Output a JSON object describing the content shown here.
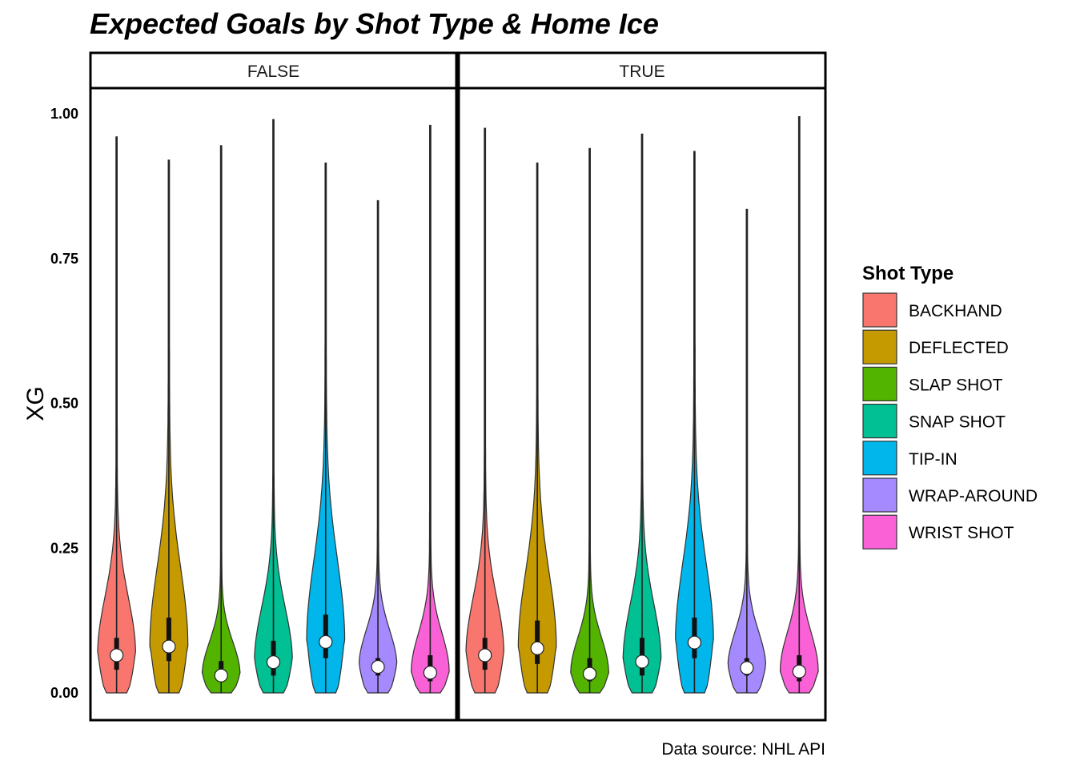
{
  "chart_data": {
    "type": "violin",
    "title": "Expected Goals by Shot Type & Home Ice",
    "ylabel": "XG",
    "xlabel": "",
    "caption": "Data source: NHL API",
    "ylim": [
      0,
      1.0
    ],
    "yticks": [
      "0.00",
      "0.25",
      "0.50",
      "0.75",
      "1.00"
    ],
    "ytick_values": [
      0,
      0.25,
      0.5,
      0.75,
      1.0
    ],
    "grid": false,
    "legend": {
      "title": "Shot Type",
      "position": "right",
      "items": [
        {
          "label": "BACKHAND",
          "color": "#F8766D"
        },
        {
          "label": "DEFLECTED",
          "color": "#C49A00"
        },
        {
          "label": "SLAP SHOT",
          "color": "#53B400"
        },
        {
          "label": "SNAP SHOT",
          "color": "#00C094"
        },
        {
          "label": "TIP-IN",
          "color": "#00B6EB"
        },
        {
          "label": "WRAP-AROUND",
          "color": "#A58AFF"
        },
        {
          "label": "WRIST SHOT",
          "color": "#FB61D7"
        }
      ]
    },
    "facets": [
      {
        "label": "FALSE",
        "series": [
          {
            "shot_type": "BACKHAND",
            "median": 0.065,
            "q1": 0.04,
            "q3": 0.095,
            "max": 0.96
          },
          {
            "shot_type": "DEFLECTED",
            "median": 0.08,
            "q1": 0.055,
            "q3": 0.13,
            "max": 0.92
          },
          {
            "shot_type": "SLAP SHOT",
            "median": 0.03,
            "q1": 0.02,
            "q3": 0.055,
            "max": 0.945
          },
          {
            "shot_type": "SNAP SHOT",
            "median": 0.053,
            "q1": 0.03,
            "q3": 0.09,
            "max": 0.99
          },
          {
            "shot_type": "TIP-IN",
            "median": 0.088,
            "q1": 0.06,
            "q3": 0.135,
            "max": 0.915
          },
          {
            "shot_type": "WRAP-AROUND",
            "median": 0.045,
            "q1": 0.03,
            "q3": 0.06,
            "max": 0.85
          },
          {
            "shot_type": "WRIST SHOT",
            "median": 0.035,
            "q1": 0.02,
            "q3": 0.065,
            "max": 0.98
          }
        ]
      },
      {
        "label": "TRUE",
        "series": [
          {
            "shot_type": "BACKHAND",
            "median": 0.065,
            "q1": 0.04,
            "q3": 0.095,
            "max": 0.975
          },
          {
            "shot_type": "DEFLECTED",
            "median": 0.077,
            "q1": 0.05,
            "q3": 0.125,
            "max": 0.915
          },
          {
            "shot_type": "SLAP SHOT",
            "median": 0.033,
            "q1": 0.02,
            "q3": 0.06,
            "max": 0.94
          },
          {
            "shot_type": "SNAP SHOT",
            "median": 0.054,
            "q1": 0.03,
            "q3": 0.095,
            "max": 0.965
          },
          {
            "shot_type": "TIP-IN",
            "median": 0.087,
            "q1": 0.06,
            "q3": 0.13,
            "max": 0.935
          },
          {
            "shot_type": "WRAP-AROUND",
            "median": 0.043,
            "q1": 0.03,
            "q3": 0.06,
            "max": 0.835
          },
          {
            "shot_type": "WRIST SHOT",
            "median": 0.037,
            "q1": 0.02,
            "q3": 0.065,
            "max": 0.995
          }
        ]
      }
    ]
  }
}
